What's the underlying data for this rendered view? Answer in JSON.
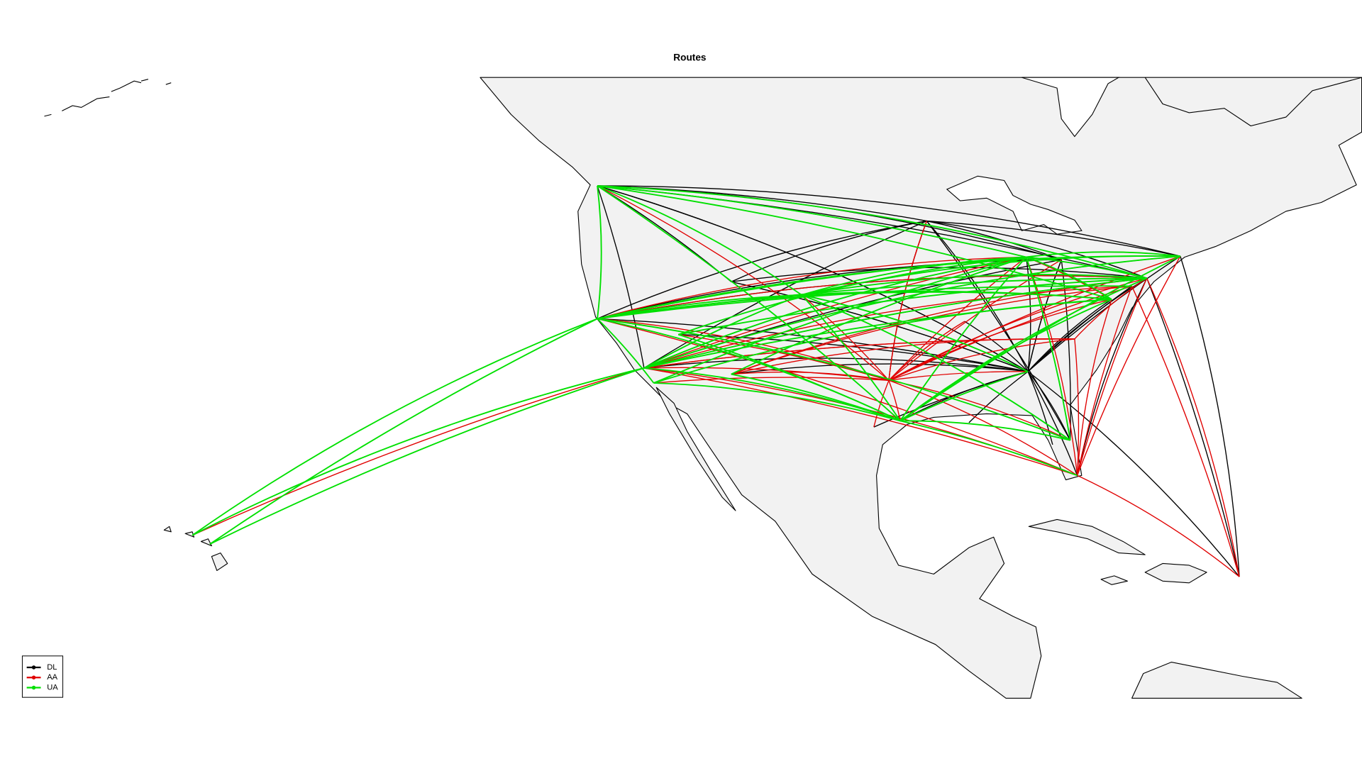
{
  "title": "Routes",
  "legend": [
    {
      "name": "DL",
      "color": "#000000"
    },
    {
      "name": "AA",
      "color": "#e00000"
    },
    {
      "name": "UA",
      "color": "#00e000"
    }
  ]
}
